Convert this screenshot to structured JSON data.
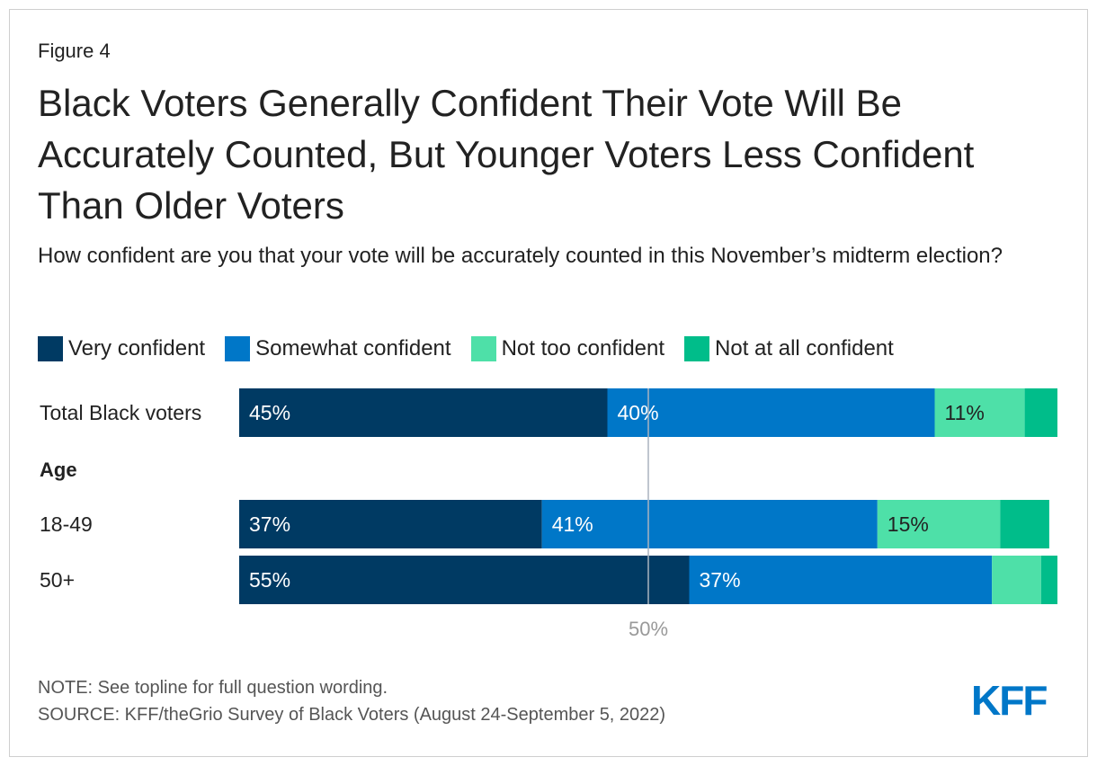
{
  "figure_label": "Figure 4",
  "title": "Black Voters Generally Confident Their Vote Will Be Accurately Counted, But Younger Voters Less Confident Than Older Voters",
  "subtitle": "How confident are you that your vote will be accurately counted in this November’s midterm election?",
  "note": "NOTE: See topline for full question wording.",
  "source": "SOURCE: KFF/theGrio Survey of Black Voters (August 24-September 5, 2022)",
  "logo": "KFF",
  "chart_data": {
    "type": "bar",
    "orientation": "horizontal",
    "stacked": true,
    "xlim": [
      0,
      100
    ],
    "reference_line": {
      "value": 50,
      "label": "50%"
    },
    "categories": [
      "Total Black voters",
      "18-49",
      "50+"
    ],
    "group_label": {
      "text": "Age",
      "before_category": "18-49"
    },
    "series": [
      {
        "name": "Very confident",
        "color": "#003a63",
        "values": [
          45,
          37,
          55
        ],
        "labels": [
          "45%",
          "37%",
          "55%"
        ]
      },
      {
        "name": "Somewhat confident",
        "color": "#0077c8",
        "values": [
          40,
          41,
          37
        ],
        "labels": [
          "40%",
          "41%",
          "37%"
        ]
      },
      {
        "name": "Not too confident",
        "color": "#4ee0a8",
        "values": [
          11,
          15,
          6
        ],
        "labels": [
          "11%",
          "15%",
          ""
        ]
      },
      {
        "name": "Not at all confident",
        "color": "#00bd8a",
        "values": [
          4,
          6,
          2
        ],
        "labels": [
          "",
          "",
          ""
        ]
      }
    ],
    "label_color_dark": "#ffffff",
    "label_color_light": "#222222"
  }
}
